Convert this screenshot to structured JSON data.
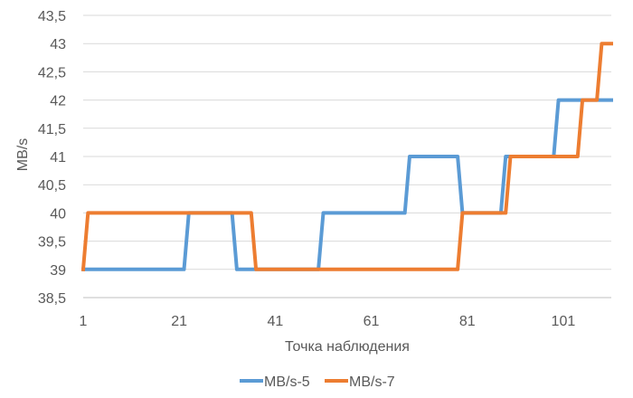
{
  "chart_data": {
    "type": "line",
    "title": "",
    "xlabel": "Точка наблюдения",
    "ylabel": "MB/s",
    "xlim": [
      1,
      111
    ],
    "ylim": [
      38.5,
      43.5
    ],
    "x_ticks": [
      1,
      21,
      41,
      61,
      81,
      101
    ],
    "x_tick_labels": [
      "1",
      "21",
      "41",
      "61",
      "81",
      "101"
    ],
    "y_ticks": [
      38.5,
      39,
      39.5,
      40,
      40.5,
      41,
      41.5,
      42,
      42.5,
      43,
      43.5
    ],
    "y_tick_labels": [
      "38,5",
      "39",
      "39,5",
      "40",
      "40,5",
      "41",
      "41,5",
      "42",
      "42,5",
      "43",
      "43,5"
    ],
    "grid": "horizontal",
    "legend_position": "bottom",
    "series": [
      {
        "name": "MB/s-5",
        "color": "#5b9bd5",
        "x": [
          1,
          22,
          23,
          32,
          33,
          50,
          51,
          68,
          69,
          79,
          80,
          88,
          89,
          99,
          100,
          111
        ],
        "y": [
          39,
          39,
          40,
          40,
          39,
          39,
          40,
          40,
          41,
          41,
          40,
          40,
          41,
          41,
          42,
          42
        ]
      },
      {
        "name": "MB/s-7",
        "color": "#ed7d31",
        "x": [
          1,
          2,
          36,
          37,
          79,
          80,
          89,
          90,
          104,
          105,
          108,
          109,
          111
        ],
        "y": [
          39,
          40,
          40,
          39,
          39,
          40,
          40,
          41,
          41,
          42,
          42,
          43,
          43
        ]
      }
    ]
  }
}
